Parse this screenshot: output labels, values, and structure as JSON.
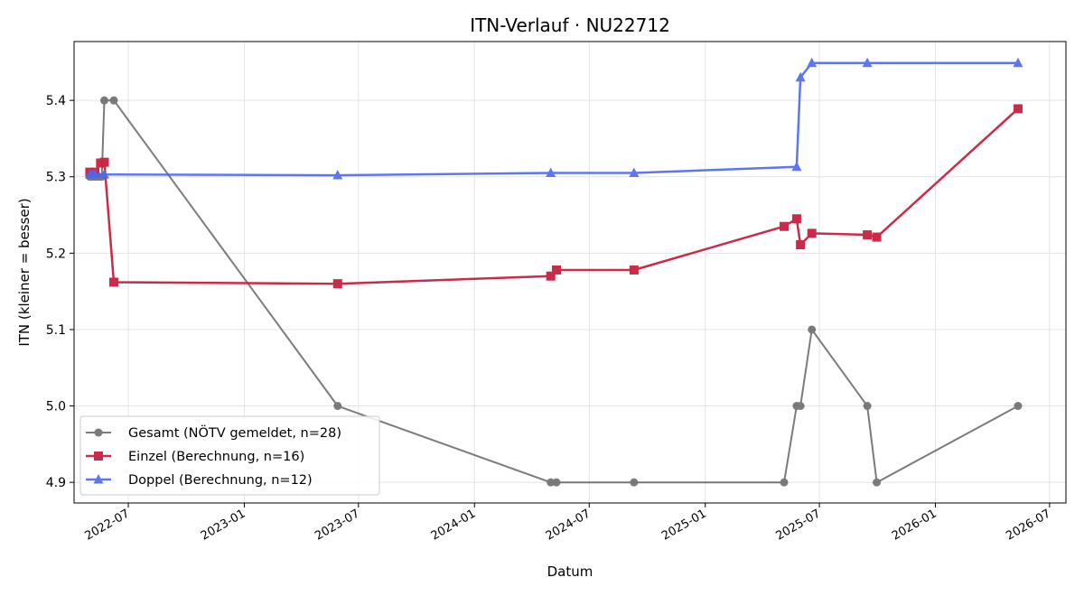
{
  "chart_data": {
    "type": "line",
    "title": "ITN-Verlauf · NU22712",
    "xlabel": "Datum",
    "ylabel": "ITN  (kleiner = besser)",
    "x_axis_type": "date",
    "xlim": [
      "2022-04-06",
      "2026-07-27"
    ],
    "ylim": [
      4.873,
      5.477
    ],
    "x_ticks": [
      {
        "date": "2022-07-01",
        "label": "2022-07"
      },
      {
        "date": "2023-01-01",
        "label": "2023-01"
      },
      {
        "date": "2023-07-01",
        "label": "2023-07"
      },
      {
        "date": "2024-01-01",
        "label": "2024-01"
      },
      {
        "date": "2024-07-01",
        "label": "2024-07"
      },
      {
        "date": "2025-01-01",
        "label": "2025-01"
      },
      {
        "date": "2025-07-01",
        "label": "2025-07"
      },
      {
        "date": "2026-01-01",
        "label": "2026-01"
      },
      {
        "date": "2026-07-01",
        "label": "2026-07"
      }
    ],
    "y_ticks": [
      {
        "value": 4.9,
        "label": "4.9"
      },
      {
        "value": 5.0,
        "label": "5.0"
      },
      {
        "value": 5.1,
        "label": "5.1"
      },
      {
        "value": 5.2,
        "label": "5.2"
      },
      {
        "value": 5.3,
        "label": "5.3"
      },
      {
        "value": 5.4,
        "label": "5.4"
      }
    ],
    "grid": true,
    "legend_position": "lower-left",
    "series": [
      {
        "name": "Gesamt (NÖTV gemeldet, n=28)",
        "color": "#444444",
        "marker": "circle",
        "points": [
          {
            "x": "2022-05-01",
            "y": 5.3
          },
          {
            "x": "2022-05-04",
            "y": 5.3
          },
          {
            "x": "2022-05-08",
            "y": 5.3
          },
          {
            "x": "2022-05-12",
            "y": 5.3
          },
          {
            "x": "2022-05-16",
            "y": 5.3
          },
          {
            "x": "2022-05-20",
            "y": 5.3
          },
          {
            "x": "2022-05-24",
            "y": 5.4
          },
          {
            "x": "2022-06-08",
            "y": 5.4
          },
          {
            "x": "2023-05-29",
            "y": 5.0
          },
          {
            "x": "2024-05-01",
            "y": 4.9
          },
          {
            "x": "2024-05-10",
            "y": 4.9
          },
          {
            "x": "2024-09-10",
            "y": 4.9
          },
          {
            "x": "2025-05-06",
            "y": 4.9
          },
          {
            "x": "2025-05-26",
            "y": 5.0
          },
          {
            "x": "2025-06-01",
            "y": 5.0
          },
          {
            "x": "2025-06-19",
            "y": 5.1
          },
          {
            "x": "2025-09-15",
            "y": 5.0
          },
          {
            "x": "2025-09-30",
            "y": 4.9
          },
          {
            "x": "2026-05-12",
            "y": 5.0
          }
        ]
      },
      {
        "name": "Einzel (Berechnung, n=16)",
        "color": "#c8203f",
        "marker": "square",
        "points": [
          {
            "x": "2022-05-01",
            "y": 5.306
          },
          {
            "x": "2022-05-09",
            "y": 5.306
          },
          {
            "x": "2022-05-18",
            "y": 5.318
          },
          {
            "x": "2022-05-24",
            "y": 5.319
          },
          {
            "x": "2022-06-08",
            "y": 5.162
          },
          {
            "x": "2023-05-29",
            "y": 5.16
          },
          {
            "x": "2024-05-01",
            "y": 5.17
          },
          {
            "x": "2024-05-10",
            "y": 5.178
          },
          {
            "x": "2024-09-10",
            "y": 5.178
          },
          {
            "x": "2025-05-06",
            "y": 5.235
          },
          {
            "x": "2025-05-26",
            "y": 5.245
          },
          {
            "x": "2025-06-01",
            "y": 5.211
          },
          {
            "x": "2025-06-19",
            "y": 5.226
          },
          {
            "x": "2025-09-15",
            "y": 5.224
          },
          {
            "x": "2025-09-30",
            "y": 5.221
          },
          {
            "x": "2026-05-12",
            "y": 5.389
          }
        ]
      },
      {
        "name": "Doppel (Berechnung, n=12)",
        "color": "#4d69ee",
        "marker": "triangle",
        "points": [
          {
            "x": "2022-05-01",
            "y": 5.303
          },
          {
            "x": "2022-05-05",
            "y": 5.303
          },
          {
            "x": "2022-05-09",
            "y": 5.303
          },
          {
            "x": "2022-05-24",
            "y": 5.303
          },
          {
            "x": "2023-05-29",
            "y": 5.302
          },
          {
            "x": "2024-05-01",
            "y": 5.305
          },
          {
            "x": "2024-09-10",
            "y": 5.305
          },
          {
            "x": "2025-05-26",
            "y": 5.313
          },
          {
            "x": "2025-06-01",
            "y": 5.43
          },
          {
            "x": "2025-06-19",
            "y": 5.449
          },
          {
            "x": "2025-09-15",
            "y": 5.449
          },
          {
            "x": "2026-05-12",
            "y": 5.449
          }
        ]
      }
    ]
  }
}
